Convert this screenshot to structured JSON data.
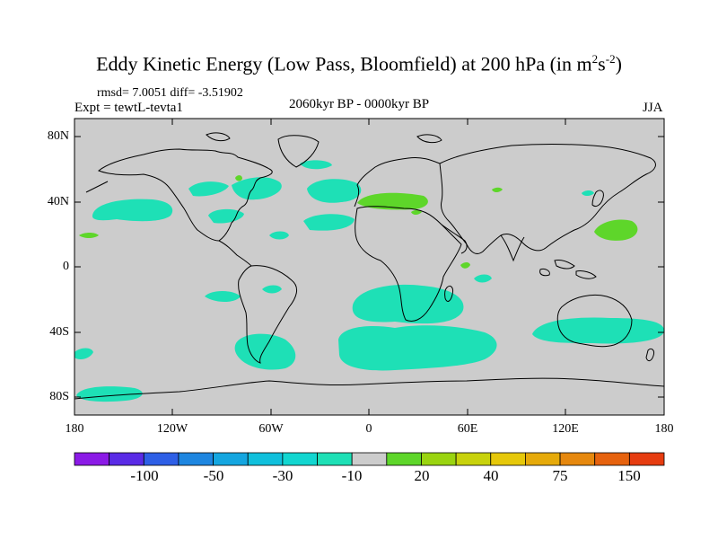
{
  "title_main": "Eddy Kinetic Energy (Low Pass, Bloomfield) at 200 hPa (in m",
  "title_sup1": "2",
  "title_mid": "s",
  "title_sup2": "-2",
  "title_end": ")",
  "stats": "rmsd= 7.0051 diff= -3.51902",
  "expt": "Expt = tewtL-tevta1",
  "period": "2060kyr BP - 0000kyr BP",
  "season": "JJA",
  "lat_labels": [
    "80N",
    "40N",
    "0",
    "40S",
    "80S"
  ],
  "lon_labels": [
    "180",
    "120W",
    "60W",
    "0",
    "60E",
    "120E",
    "180"
  ],
  "colorbar": {
    "colors": [
      "#8b1ae6",
      "#5a2be6",
      "#2e5fe6",
      "#1e86e0",
      "#14a6e0",
      "#10c0dc",
      "#12d6d0",
      "#1ee0b6",
      "#cccccc",
      "#5ed62a",
      "#9ad410",
      "#c8d20c",
      "#e6c80a",
      "#e6aa0a",
      "#e6880e",
      "#e6620e",
      "#e63c10"
    ],
    "labels": [
      "-100",
      "-50",
      "-30",
      "-10",
      "20",
      "40",
      "75",
      "150"
    ]
  },
  "colors": {
    "ocean_background": "#cccccc",
    "negative_region": "#1ee0b6",
    "positive_region": "#5ed62a",
    "coastline": "#000000"
  }
}
